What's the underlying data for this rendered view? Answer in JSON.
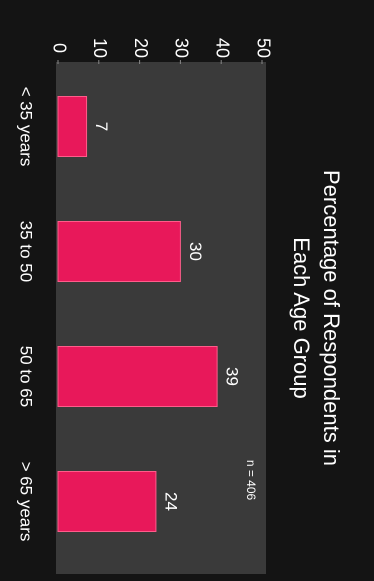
{
  "chart_data": {
    "type": "bar",
    "title": [
      "Percentage of Respondents in",
      "Each Age Group"
    ],
    "annotation": "n = 406",
    "categories": [
      "< 35 years",
      "35 to 50",
      "50 to 65",
      "> 65 years"
    ],
    "values": [
      7,
      30,
      39,
      24
    ],
    "color": "#e8185a",
    "ylim": [
      0,
      50
    ],
    "yticks": [
      0,
      10,
      20,
      30,
      40,
      50
    ],
    "grid": false
  }
}
